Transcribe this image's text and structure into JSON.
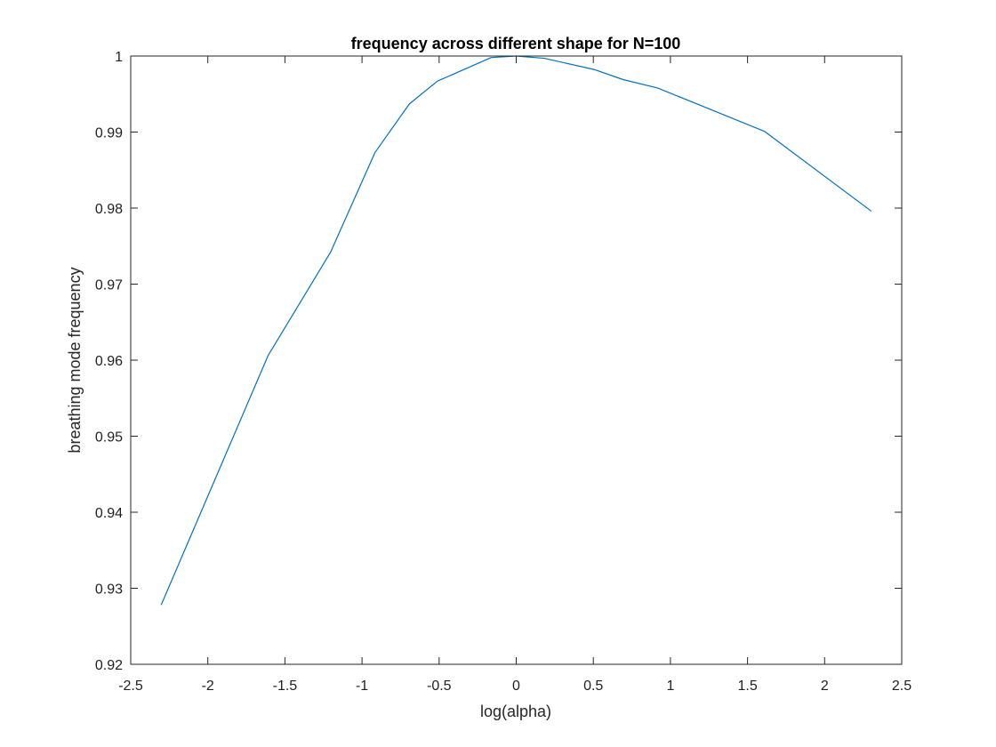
{
  "chart_data": {
    "type": "line",
    "title": "frequency across different shape for N=100",
    "xlabel": "log(alpha)",
    "ylabel": "breathing mode frequency",
    "xlim": [
      -2.5,
      2.5
    ],
    "ylim": [
      0.92,
      1.0
    ],
    "xticks": [
      -2.5,
      -2,
      -1.5,
      -1,
      -0.5,
      0,
      0.5,
      1,
      1.5,
      2,
      2.5
    ],
    "xtick_labels": [
      "-2.5",
      "-2",
      "-1.5",
      "-1",
      "-0.5",
      "0",
      "0.5",
      "1",
      "1.5",
      "2",
      "2.5"
    ],
    "yticks": [
      0.92,
      0.93,
      0.94,
      0.95,
      0.96,
      0.97,
      0.98,
      0.99,
      1.0
    ],
    "ytick_labels": [
      "0.92",
      "0.93",
      "0.94",
      "0.95",
      "0.96",
      "0.97",
      "0.98",
      "0.99",
      "1"
    ],
    "grid": false,
    "box": true,
    "series": [
      {
        "color": "#0072BD",
        "x": [
          -2.3026,
          -1.6094,
          -1.204,
          -0.9163,
          -0.6931,
          -0.5108,
          -0.1625,
          0.0,
          0.1823,
          0.5108,
          0.6931,
          0.9163,
          1.6094,
          2.3026
        ],
        "y": [
          0.9278,
          0.9606,
          0.9742,
          0.9873,
          0.9937,
          0.9967,
          0.9998,
          1.0,
          0.9997,
          0.9982,
          0.9969,
          0.9958,
          0.9901,
          0.9796
        ]
      }
    ]
  }
}
